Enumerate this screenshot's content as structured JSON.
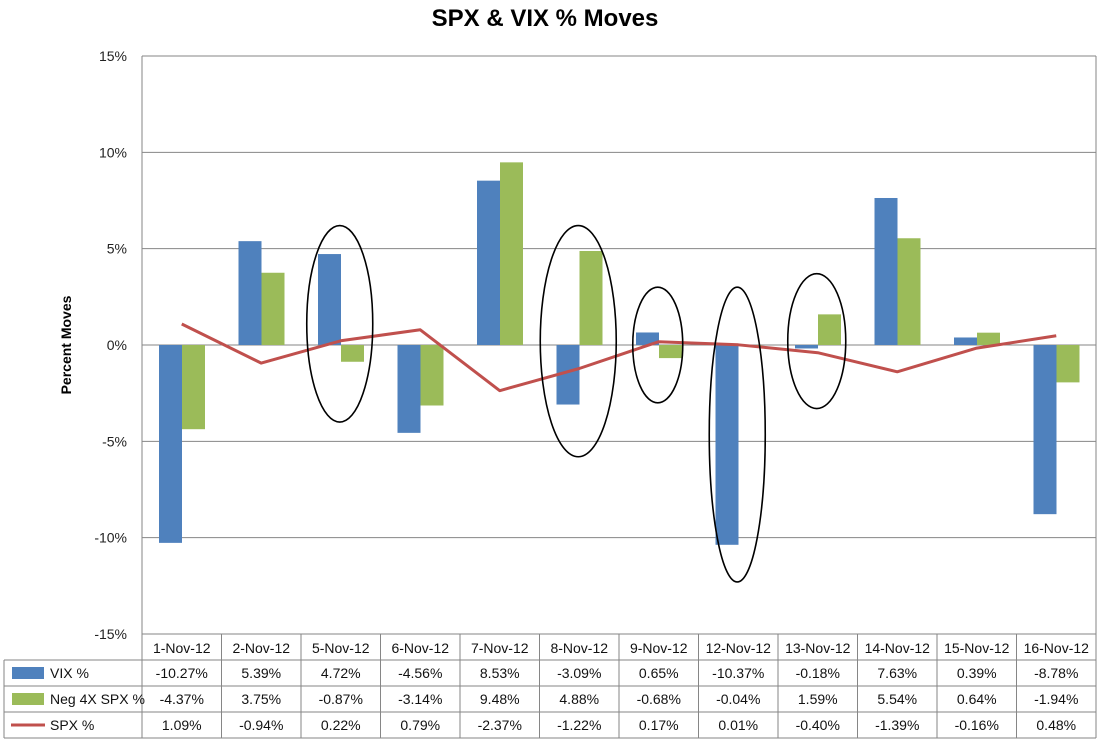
{
  "chart_data": {
    "type": "bar",
    "title": "SPX & VIX % Moves",
    "xlabel": "",
    "ylabel": "Percent Moves",
    "ylim": [
      -15,
      15
    ],
    "y_ticks": [
      "15%",
      "10%",
      "5%",
      "0%",
      "-5%",
      "-10%",
      "-15%"
    ],
    "grid": true,
    "legend": "data-table-left",
    "categories": [
      "1-Nov-12",
      "2-Nov-12",
      "5-Nov-12",
      "6-Nov-12",
      "7-Nov-12",
      "8-Nov-12",
      "9-Nov-12",
      "12-Nov-12",
      "13-Nov-12",
      "14-Nov-12",
      "15-Nov-12",
      "16-Nov-12"
    ],
    "series": [
      {
        "name": "VIX %",
        "kind": "bar",
        "color": "#4F81BD",
        "values": [
          -10.27,
          5.39,
          4.72,
          -4.56,
          8.53,
          -3.09,
          0.65,
          -10.37,
          -0.18,
          7.63,
          0.39,
          -8.78
        ],
        "labels": [
          "-10.27%",
          "5.39%",
          "4.72%",
          "-4.56%",
          "8.53%",
          "-3.09%",
          "0.65%",
          "-10.37%",
          "-0.18%",
          "7.63%",
          "0.39%",
          "-8.78%"
        ]
      },
      {
        "name": "Neg 4X SPX %",
        "kind": "bar",
        "color": "#9BBB59",
        "values": [
          -4.37,
          3.75,
          -0.87,
          -3.14,
          9.48,
          4.88,
          -0.68,
          -0.04,
          1.59,
          5.54,
          0.64,
          -1.94
        ],
        "labels": [
          "-4.37%",
          "3.75%",
          "-0.87%",
          "-3.14%",
          "9.48%",
          "4.88%",
          "-0.68%",
          "-0.04%",
          "1.59%",
          "5.54%",
          "0.64%",
          "-1.94%"
        ]
      },
      {
        "name": "SPX %",
        "kind": "line",
        "color": "#C0504D",
        "values": [
          1.09,
          -0.94,
          0.22,
          0.79,
          -2.37,
          -1.22,
          0.17,
          0.01,
          -0.4,
          -1.39,
          -0.16,
          0.48
        ],
        "labels": [
          "1.09%",
          "-0.94%",
          "0.22%",
          "0.79%",
          "-2.37%",
          "-1.22%",
          "0.17%",
          "0.01%",
          "-0.40%",
          "-1.39%",
          "-0.16%",
          "0.48%"
        ]
      }
    ],
    "highlighted_categories": [
      "5-Nov-12",
      "8-Nov-12",
      "9-Nov-12",
      "12-Nov-12",
      "13-Nov-12"
    ]
  }
}
